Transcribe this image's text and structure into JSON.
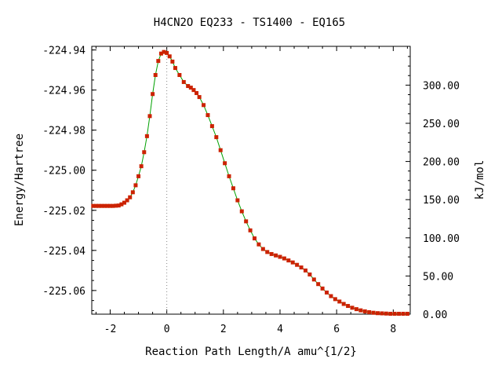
{
  "chart_data": {
    "type": "line",
    "title": "H4CN2O   EQ233 - TS1400 - EQ165",
    "xlabel": "Reaction Path Length/A amu^{1/2}",
    "ylabel": "Energy/Hartree",
    "y2label": "kJ/mol",
    "xlim": [
      -2.65,
      8.6
    ],
    "ylim": [
      -225.0718,
      -224.9382
    ],
    "y2lim": [
      0,
      350.8
    ],
    "x_ticks": [
      -2,
      0,
      2,
      4,
      6,
      8
    ],
    "x_tick_labels": [
      "-2",
      "0",
      "2",
      "4",
      "6",
      "8"
    ],
    "y_ticks": [
      -224.94,
      -224.96,
      -224.98,
      -225.0,
      -225.02,
      -225.04,
      -225.06
    ],
    "y_tick_labels": [
      "-224.94",
      "-224.96",
      "-224.98",
      "-225.00",
      "-225.02",
      "-225.04",
      "-225.06"
    ],
    "y2_ticks": [
      0,
      50,
      100,
      150,
      200,
      250,
      300
    ],
    "y2_tick_labels": [
      "0.00",
      "50.00",
      "100.00",
      "150.00",
      "200.00",
      "250.00",
      "300.00"
    ],
    "ts_marker_x": 0,
    "grid": false,
    "line_color": "#00a000",
    "marker_color": "#cc2200",
    "x": [
      -2.6,
      -2.5,
      -2.4,
      -2.3,
      -2.2,
      -2.1,
      -2.0,
      -1.9,
      -1.8,
      -1.7,
      -1.6,
      -1.5,
      -1.4,
      -1.3,
      -1.2,
      -1.1,
      -1.0,
      -0.9,
      -0.8,
      -0.7,
      -0.6,
      -0.5,
      -0.4,
      -0.3,
      -0.2,
      -0.1,
      0.0,
      0.1,
      0.2,
      0.3,
      0.45,
      0.6,
      0.75,
      0.85,
      0.95,
      1.05,
      1.15,
      1.3,
      1.45,
      1.6,
      1.75,
      1.9,
      2.05,
      2.2,
      2.35,
      2.5,
      2.65,
      2.8,
      2.95,
      3.1,
      3.25,
      3.4,
      3.55,
      3.7,
      3.85,
      4.0,
      4.15,
      4.3,
      4.45,
      4.6,
      4.75,
      4.9,
      5.05,
      5.2,
      5.35,
      5.5,
      5.65,
      5.8,
      5.95,
      6.1,
      6.25,
      6.4,
      6.55,
      6.7,
      6.85,
      7.0,
      7.15,
      7.3,
      7.45,
      7.6,
      7.75,
      7.9,
      8.05,
      8.2,
      8.35,
      8.5
    ],
    "y": [
      -225.0178,
      -225.0178,
      -225.0178,
      -225.0178,
      -225.0178,
      -225.0178,
      -225.0178,
      -225.0178,
      -225.0177,
      -225.0176,
      -225.017,
      -225.0162,
      -225.015,
      -225.0135,
      -225.011,
      -225.0075,
      -225.003,
      -224.998,
      -224.991,
      -224.983,
      -224.973,
      -224.962,
      -224.9525,
      -224.9455,
      -224.9418,
      -224.941,
      -224.9415,
      -224.9432,
      -224.9458,
      -224.949,
      -224.9525,
      -224.956,
      -224.958,
      -224.9588,
      -224.96,
      -224.9615,
      -224.9635,
      -224.9675,
      -224.9725,
      -224.978,
      -224.9835,
      -224.99,
      -224.9965,
      -225.003,
      -225.009,
      -225.015,
      -225.0205,
      -225.0255,
      -225.03,
      -225.034,
      -225.037,
      -225.0393,
      -225.0408,
      -225.0418,
      -225.0425,
      -225.0432,
      -225.044,
      -225.045,
      -225.046,
      -225.0472,
      -225.0485,
      -225.05,
      -225.052,
      -225.0545,
      -225.0568,
      -225.059,
      -225.061,
      -225.0628,
      -225.0643,
      -225.0655,
      -225.0667,
      -225.0677,
      -225.0686,
      -225.0693,
      -225.0699,
      -225.0704,
      -225.0708,
      -225.0711,
      -225.0713,
      -225.0714,
      -225.0715,
      -225.0716,
      -225.0716,
      -225.0716,
      -225.0716,
      -225.0716
    ]
  }
}
